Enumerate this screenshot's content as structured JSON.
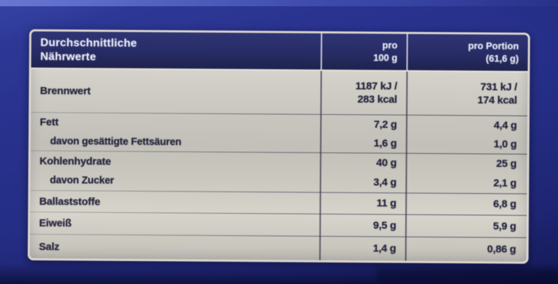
{
  "colors": {
    "package_blue": "#28318c",
    "header_navy": "#272c66",
    "label_background": "#cdcbc3",
    "border_cream": "#ded9cf",
    "text_dark": "#22223b",
    "text_light": "#eef0f6"
  },
  "table": {
    "header": {
      "title": "Durchschnittliche\nNährwerte",
      "col_per_100g": "pro\n100 g",
      "col_per_portion": "pro Portion\n(61,6 g)"
    },
    "rows": [
      {
        "label": "Brennwert",
        "per_100g": "1187 kJ /\n283 kcal",
        "per_portion": "731 kJ /\n174 kcal"
      },
      {
        "label": "Fett",
        "per_100g": "7,2 g",
        "per_portion": "4,4 g"
      },
      {
        "label": "davon gesättigte Fettsäuren",
        "per_100g": "1,6 g",
        "per_portion": "1,0 g"
      },
      {
        "label": "Kohlenhydrate",
        "per_100g": "40 g",
        "per_portion": "25 g"
      },
      {
        "label": "davon Zucker",
        "per_100g": "3,4 g",
        "per_portion": "2,1 g"
      },
      {
        "label": "Ballaststoffe",
        "per_100g": "11 g",
        "per_portion": "6,8 g"
      },
      {
        "label": "Eiweiß",
        "per_100g": "9,5 g",
        "per_portion": "5,9 g"
      },
      {
        "label": "Salz",
        "per_100g": "1,4 g",
        "per_portion": "0,86 g"
      }
    ]
  }
}
